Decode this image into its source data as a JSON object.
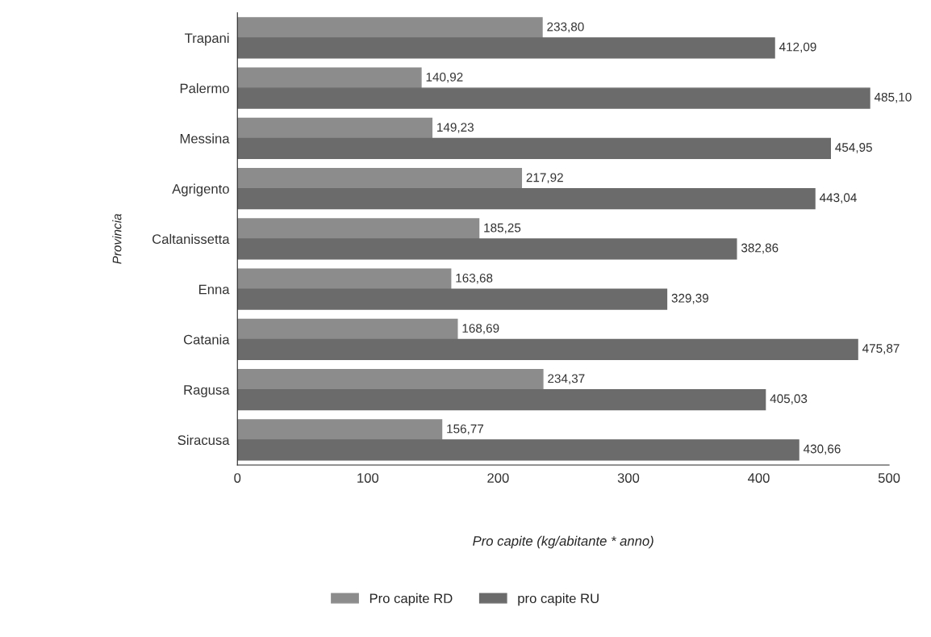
{
  "chart_data": {
    "type": "bar",
    "orientation": "horizontal",
    "xlabel": "Pro capite (kg/abitante * anno)",
    "ylabel": "Provincia",
    "categories": [
      "Trapani",
      "Palermo",
      "Messina",
      "Agrigento",
      "Caltanissetta",
      "Enna",
      "Catania",
      "Ragusa",
      "Siracusa"
    ],
    "series": [
      {
        "name": "Pro capite RD",
        "color": "#8c8c8c",
        "values": [
          233.8,
          140.92,
          149.23,
          217.92,
          185.25,
          163.68,
          168.69,
          234.37,
          156.77
        ],
        "value_labels": [
          "233,80",
          "140,92",
          "149,23",
          "217,92",
          "185,25",
          "163,68",
          "168,69",
          "234,37",
          "156,77"
        ]
      },
      {
        "name": "pro capite RU",
        "color": "#6b6b6b",
        "values": [
          412.09,
          485.1,
          454.95,
          443.04,
          382.86,
          329.39,
          475.87,
          405.03,
          430.66
        ],
        "value_labels": [
          "412,09",
          "485,10",
          "454,95",
          "443,04",
          "382,86",
          "329,39",
          "475,87",
          "405,03",
          "430,66"
        ]
      }
    ],
    "xlim": [
      0,
      500
    ],
    "xticks": [
      0,
      100,
      200,
      300,
      400,
      500
    ],
    "grid": false,
    "legend": "bottom"
  }
}
